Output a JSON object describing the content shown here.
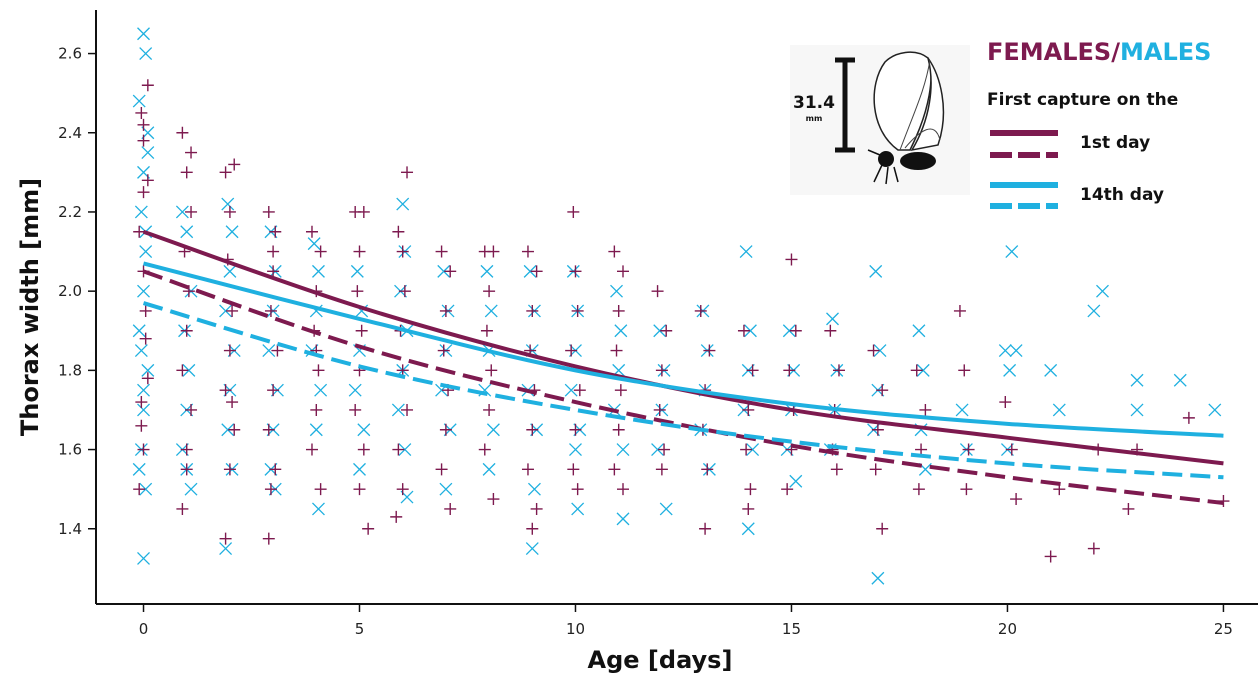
{
  "chart_data": {
    "type": "scatter",
    "xlabel": "Age [days]",
    "ylabel": "Thorax width [mm]",
    "xlim": [
      -1.1,
      25.8
    ],
    "ylim": [
      1.21,
      2.71
    ],
    "xticks": [
      0,
      5,
      10,
      15,
      20,
      25
    ],
    "yticks": [
      1.4,
      1.6,
      1.8,
      2.0,
      2.2,
      2.4,
      2.6
    ],
    "grid": false,
    "legend": {
      "placement": "top-right",
      "title_part1": "FEMALES",
      "title_sep": "/",
      "title_part2": "MALES",
      "subtitle": "First capture on the",
      "entries": [
        {
          "label": "1st day",
          "color": "#7d1a4f"
        },
        {
          "label": "14th day",
          "color": "#1fb0e0"
        }
      ]
    },
    "scale_bar": {
      "value": "31.4",
      "unit": "mm"
    },
    "colors": {
      "females": "#7d1a4f",
      "males": "#1fb0e0"
    },
    "series": [
      {
        "sex": "females",
        "first_capture": "1st day",
        "style": "solid",
        "x": [
          0,
          5,
          10,
          15,
          20,
          25
        ],
        "y": [
          2.15,
          1.96,
          1.81,
          1.7,
          1.63,
          1.565
        ]
      },
      {
        "sex": "females",
        "first_capture": "14th day",
        "style": "dashed",
        "x": [
          0,
          5,
          10,
          15,
          20,
          25
        ],
        "y": [
          2.05,
          1.86,
          1.72,
          1.61,
          1.53,
          1.465
        ]
      },
      {
        "sex": "males",
        "first_capture": "1st day",
        "style": "solid",
        "x": [
          0,
          5,
          10,
          15,
          20,
          25
        ],
        "y": [
          2.07,
          1.93,
          1.8,
          1.715,
          1.665,
          1.635
        ]
      },
      {
        "sex": "males",
        "first_capture": "14th day",
        "style": "dashed",
        "x": [
          0,
          5,
          10,
          15,
          20,
          25
        ],
        "y": [
          1.97,
          1.81,
          1.7,
          1.62,
          1.565,
          1.53
        ]
      }
    ],
    "female_points": [
      [
        -0.05,
        1.72
      ],
      [
        0.05,
        1.88
      ],
      [
        0,
        2.05
      ],
      [
        -0.1,
        2.15
      ],
      [
        0.1,
        2.28
      ],
      [
        0,
        2.38
      ],
      [
        -0.05,
        2.45
      ],
      [
        0.1,
        2.52
      ],
      [
        0,
        1.6
      ],
      [
        -0.1,
        1.5
      ],
      [
        0.05,
        1.95
      ],
      [
        0,
        2.25
      ],
      [
        0.1,
        1.78
      ],
      [
        -0.05,
        1.66
      ],
      [
        0,
        2.42
      ],
      [
        0.9,
        2.4
      ],
      [
        1,
        2.3
      ],
      [
        1.1,
        2.2
      ],
      [
        0.95,
        2.1
      ],
      [
        1.05,
        2.0
      ],
      [
        1,
        1.9
      ],
      [
        0.9,
        1.8
      ],
      [
        1.1,
        1.7
      ],
      [
        1,
        1.6
      ],
      [
        0.9,
        1.45
      ],
      [
        1.1,
        2.35
      ],
      [
        1,
        1.55
      ],
      [
        1.9,
        2.3
      ],
      [
        2.1,
        2.32
      ],
      [
        2,
        2.2
      ],
      [
        1.95,
        2.08
      ],
      [
        2.05,
        1.95
      ],
      [
        2,
        1.85
      ],
      [
        1.9,
        1.75
      ],
      [
        2.1,
        1.65
      ],
      [
        2,
        1.55
      ],
      [
        1.9,
        1.375
      ],
      [
        2.05,
        1.72
      ],
      [
        2.9,
        2.2
      ],
      [
        3.05,
        2.15
      ],
      [
        3,
        2.05
      ],
      [
        2.95,
        1.95
      ],
      [
        3.1,
        1.85
      ],
      [
        3,
        1.75
      ],
      [
        2.9,
        1.65
      ],
      [
        3.05,
        1.55
      ],
      [
        2.95,
        1.5
      ],
      [
        2.9,
        1.375
      ],
      [
        3,
        2.1
      ],
      [
        3.9,
        2.15
      ],
      [
        4.1,
        2.1
      ],
      [
        4,
        2.0
      ],
      [
        3.95,
        1.9
      ],
      [
        4.05,
        1.8
      ],
      [
        4,
        1.7
      ],
      [
        3.9,
        1.6
      ],
      [
        4.1,
        1.5
      ],
      [
        4,
        1.85
      ],
      [
        4.9,
        2.2
      ],
      [
        5.1,
        2.2
      ],
      [
        5,
        2.1
      ],
      [
        4.95,
        2.0
      ],
      [
        5.05,
        1.9
      ],
      [
        5,
        1.8
      ],
      [
        4.9,
        1.7
      ],
      [
        5.1,
        1.6
      ],
      [
        5.2,
        1.4
      ],
      [
        5,
        1.5
      ],
      [
        5.9,
        2.15
      ],
      [
        6.1,
        2.3
      ],
      [
        6,
        2.1
      ],
      [
        6.05,
        2.0
      ],
      [
        5.95,
        1.9
      ],
      [
        6,
        1.8
      ],
      [
        6.1,
        1.7
      ],
      [
        5.9,
        1.6
      ],
      [
        5.85,
        1.43
      ],
      [
        6,
        1.5
      ],
      [
        6.9,
        2.1
      ],
      [
        7.1,
        2.05
      ],
      [
        7,
        1.95
      ],
      [
        6.95,
        1.85
      ],
      [
        7.05,
        1.75
      ],
      [
        7,
        1.65
      ],
      [
        6.9,
        1.55
      ],
      [
        7.1,
        1.45
      ],
      [
        7.9,
        2.1
      ],
      [
        8.1,
        2.1
      ],
      [
        8,
        2.0
      ],
      [
        7.95,
        1.9
      ],
      [
        8.05,
        1.8
      ],
      [
        8,
        1.7
      ],
      [
        7.9,
        1.6
      ],
      [
        8.1,
        1.475
      ],
      [
        8.9,
        2.1
      ],
      [
        9.1,
        2.05
      ],
      [
        9,
        1.95
      ],
      [
        8.95,
        1.85
      ],
      [
        9.05,
        1.75
      ],
      [
        9,
        1.65
      ],
      [
        8.9,
        1.55
      ],
      [
        9.1,
        1.45
      ],
      [
        9,
        1.4
      ],
      [
        9.95,
        2.2
      ],
      [
        10,
        2.05
      ],
      [
        10.05,
        1.95
      ],
      [
        9.9,
        1.85
      ],
      [
        10.1,
        1.75
      ],
      [
        10,
        1.65
      ],
      [
        9.95,
        1.55
      ],
      [
        10.05,
        1.5
      ],
      [
        10.9,
        2.1
      ],
      [
        11.1,
        2.05
      ],
      [
        11,
        1.95
      ],
      [
        10.95,
        1.85
      ],
      [
        11.05,
        1.75
      ],
      [
        11,
        1.65
      ],
      [
        10.9,
        1.55
      ],
      [
        11.1,
        1.5
      ],
      [
        11.9,
        2.0
      ],
      [
        12.1,
        1.9
      ],
      [
        12,
        1.8
      ],
      [
        11.95,
        1.7
      ],
      [
        12.05,
        1.6
      ],
      [
        12,
        1.55
      ],
      [
        12.9,
        1.95
      ],
      [
        13.1,
        1.85
      ],
      [
        13,
        1.75
      ],
      [
        12.95,
        1.65
      ],
      [
        13.05,
        1.55
      ],
      [
        13,
        1.4
      ],
      [
        13.9,
        1.9
      ],
      [
        14.1,
        1.8
      ],
      [
        14,
        1.7
      ],
      [
        13.95,
        1.6
      ],
      [
        14.05,
        1.5
      ],
      [
        14,
        1.45
      ],
      [
        15,
        2.08
      ],
      [
        15.1,
        1.9
      ],
      [
        14.95,
        1.8
      ],
      [
        15.05,
        1.7
      ],
      [
        15,
        1.6
      ],
      [
        14.9,
        1.5
      ],
      [
        15.9,
        1.9
      ],
      [
        16.1,
        1.8
      ],
      [
        16,
        1.7
      ],
      [
        15.95,
        1.6
      ],
      [
        16.05,
        1.55
      ],
      [
        16.9,
        1.85
      ],
      [
        17.1,
        1.75
      ],
      [
        17,
        1.65
      ],
      [
        16.95,
        1.55
      ],
      [
        17.1,
        1.4
      ],
      [
        17.9,
        1.8
      ],
      [
        18.1,
        1.7
      ],
      [
        18,
        1.6
      ],
      [
        17.95,
        1.5
      ],
      [
        18.9,
        1.95
      ],
      [
        19,
        1.8
      ],
      [
        19.1,
        1.6
      ],
      [
        19.05,
        1.5
      ],
      [
        19.95,
        1.72
      ],
      [
        20.1,
        1.6
      ],
      [
        20.2,
        1.475
      ],
      [
        21,
        1.33
      ],
      [
        21.2,
        1.5
      ],
      [
        22,
        1.35
      ],
      [
        22.1,
        1.6
      ],
      [
        22.8,
        1.45
      ],
      [
        23,
        1.6
      ],
      [
        24.2,
        1.68
      ],
      [
        25,
        1.47
      ]
    ],
    "male_points": [
      [
        0,
        2.65
      ],
      [
        0.05,
        2.6
      ],
      [
        -0.1,
        2.48
      ],
      [
        0.1,
        2.4
      ],
      [
        0,
        2.3
      ],
      [
        -0.05,
        2.2
      ],
      [
        0.05,
        2.1
      ],
      [
        0,
        2.0
      ],
      [
        -0.1,
        1.9
      ],
      [
        0.1,
        1.8
      ],
      [
        0,
        1.7
      ],
      [
        -0.05,
        1.6
      ],
      [
        0.05,
        1.5
      ],
      [
        0,
        1.325
      ],
      [
        0.1,
        2.35
      ],
      [
        -0.05,
        1.85
      ],
      [
        0.05,
        2.15
      ],
      [
        0,
        1.75
      ],
      [
        -0.1,
        1.55
      ],
      [
        0.9,
        2.2
      ],
      [
        1,
        2.15
      ],
      [
        1.1,
        2.0
      ],
      [
        0.95,
        1.9
      ],
      [
        1.05,
        1.8
      ],
      [
        1,
        1.7
      ],
      [
        0.9,
        1.6
      ],
      [
        1.1,
        1.5
      ],
      [
        1,
        1.55
      ],
      [
        1.95,
        2.22
      ],
      [
        2.05,
        2.15
      ],
      [
        2,
        2.05
      ],
      [
        1.9,
        1.95
      ],
      [
        2.1,
        1.85
      ],
      [
        2,
        1.75
      ],
      [
        1.95,
        1.65
      ],
      [
        2.05,
        1.55
      ],
      [
        1.9,
        1.35
      ],
      [
        2.95,
        2.15
      ],
      [
        3.05,
        2.05
      ],
      [
        3,
        1.95
      ],
      [
        2.9,
        1.85
      ],
      [
        3.1,
        1.75
      ],
      [
        3,
        1.65
      ],
      [
        2.95,
        1.55
      ],
      [
        3.05,
        1.5
      ],
      [
        3.95,
        2.12
      ],
      [
        4.05,
        2.05
      ],
      [
        4,
        1.95
      ],
      [
        3.9,
        1.85
      ],
      [
        4.1,
        1.75
      ],
      [
        4,
        1.65
      ],
      [
        4.05,
        1.45
      ],
      [
        4.95,
        2.05
      ],
      [
        5.05,
        1.95
      ],
      [
        5,
        1.85
      ],
      [
        4.9,
        1.75
      ],
      [
        5.1,
        1.65
      ],
      [
        5,
        1.55
      ],
      [
        6,
        2.22
      ],
      [
        6.05,
        2.1
      ],
      [
        5.95,
        2.0
      ],
      [
        6.1,
        1.9
      ],
      [
        6,
        1.8
      ],
      [
        5.9,
        1.7
      ],
      [
        6.05,
        1.6
      ],
      [
        6.1,
        1.48
      ],
      [
        6.95,
        2.05
      ],
      [
        7.05,
        1.95
      ],
      [
        7,
        1.85
      ],
      [
        6.9,
        1.75
      ],
      [
        7.1,
        1.65
      ],
      [
        7,
        1.5
      ],
      [
        7.95,
        2.05
      ],
      [
        8.05,
        1.95
      ],
      [
        8,
        1.85
      ],
      [
        7.9,
        1.75
      ],
      [
        8.1,
        1.65
      ],
      [
        8,
        1.55
      ],
      [
        8.95,
        2.05
      ],
      [
        9.05,
        1.95
      ],
      [
        9,
        1.85
      ],
      [
        8.9,
        1.75
      ],
      [
        9.1,
        1.65
      ],
      [
        9,
        1.35
      ],
      [
        9.05,
        1.5
      ],
      [
        9.95,
        2.05
      ],
      [
        10.05,
        1.95
      ],
      [
        10,
        1.85
      ],
      [
        9.9,
        1.75
      ],
      [
        10.1,
        1.65
      ],
      [
        10,
        1.6
      ],
      [
        10.05,
        1.45
      ],
      [
        10.95,
        2.0
      ],
      [
        11.05,
        1.9
      ],
      [
        11,
        1.8
      ],
      [
        10.9,
        1.7
      ],
      [
        11.1,
        1.6
      ],
      [
        11.1,
        1.425
      ],
      [
        11.95,
        1.9
      ],
      [
        12.05,
        1.8
      ],
      [
        12,
        1.7
      ],
      [
        11.9,
        1.6
      ],
      [
        12.1,
        1.45
      ],
      [
        12.95,
        1.95
      ],
      [
        13.05,
        1.85
      ],
      [
        13,
        1.75
      ],
      [
        12.9,
        1.65
      ],
      [
        13.1,
        1.55
      ],
      [
        13.95,
        2.1
      ],
      [
        14.05,
        1.9
      ],
      [
        14,
        1.8
      ],
      [
        13.9,
        1.7
      ],
      [
        14.1,
        1.6
      ],
      [
        14,
        1.4
      ],
      [
        14.95,
        1.9
      ],
      [
        15.05,
        1.8
      ],
      [
        15,
        1.7
      ],
      [
        14.9,
        1.6
      ],
      [
        15.1,
        1.52
      ],
      [
        15.95,
        1.93
      ],
      [
        16.05,
        1.8
      ],
      [
        16,
        1.7
      ],
      [
        15.9,
        1.6
      ],
      [
        16.95,
        2.05
      ],
      [
        17.05,
        1.85
      ],
      [
        17,
        1.75
      ],
      [
        16.9,
        1.65
      ],
      [
        17,
        1.275
      ],
      [
        17.95,
        1.9
      ],
      [
        18.05,
        1.8
      ],
      [
        18,
        1.65
      ],
      [
        18.1,
        1.55
      ],
      [
        18.95,
        1.7
      ],
      [
        19.05,
        1.6
      ],
      [
        19.95,
        1.85
      ],
      [
        20.05,
        1.8
      ],
      [
        20.1,
        2.1
      ],
      [
        20.2,
        1.85
      ],
      [
        20,
        1.6
      ],
      [
        21,
        1.8
      ],
      [
        21.2,
        1.7
      ],
      [
        22.2,
        2.0
      ],
      [
        22,
        1.95
      ],
      [
        23,
        1.775
      ],
      [
        23,
        1.7
      ],
      [
        24,
        1.775
      ],
      [
        24.8,
        1.7
      ]
    ]
  }
}
